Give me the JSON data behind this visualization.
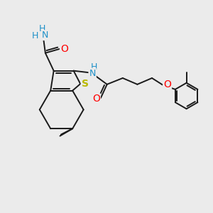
{
  "bg_color": "#ebebeb",
  "atom_colors": {
    "C": "#000000",
    "H": "#1e90c8",
    "N": "#1e90c8",
    "O": "#ff0000",
    "S": "#b8b800"
  },
  "bond_color": "#1a1a1a",
  "bond_width": 1.4,
  "figsize": [
    3.0,
    3.0
  ],
  "dpi": 100
}
